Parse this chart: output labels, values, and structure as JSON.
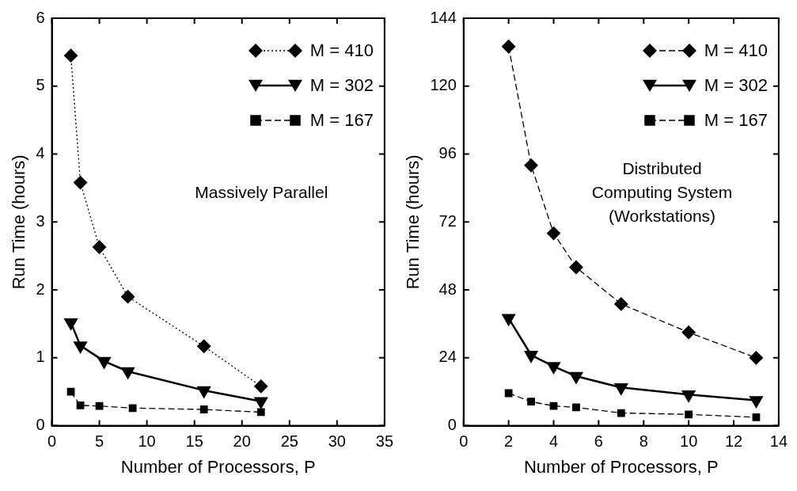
{
  "chart_data": [
    {
      "type": "line",
      "xlabel": "Number of Processors, P",
      "ylabel": "Run Time (hours)",
      "xlim": [
        0,
        35
      ],
      "xticks": [
        0,
        5,
        10,
        15,
        20,
        25,
        30,
        35
      ],
      "ylim": [
        0,
        6
      ],
      "yticks": [
        0,
        1,
        2,
        3,
        4,
        5,
        6
      ],
      "legend": "top right",
      "grid": false,
      "annotations": [
        "Massively Parallel"
      ],
      "series": [
        {
          "name": "M = 410",
          "color": "#000000",
          "marker": "diamond",
          "line_style": "dotted",
          "x": [
            2,
            3,
            5,
            8,
            16,
            22
          ],
          "values": [
            5.45,
            3.58,
            2.63,
            1.9,
            1.17,
            0.58
          ]
        },
        {
          "name": "M = 302",
          "color": "#000000",
          "marker": "triangle",
          "line_style": "solid",
          "x": [
            2,
            3,
            5.5,
            8,
            16,
            22
          ],
          "values": [
            1.52,
            1.18,
            0.95,
            0.8,
            0.52,
            0.36
          ]
        },
        {
          "name": "M = 167",
          "color": "#000000",
          "marker": "square",
          "line_style": "dashed",
          "x": [
            2,
            3,
            5,
            8.5,
            16,
            22
          ],
          "values": [
            0.5,
            0.3,
            0.29,
            0.26,
            0.24,
            0.2
          ]
        }
      ]
    },
    {
      "type": "line",
      "xlabel": "Number of Processors, P",
      "ylabel": "Run Time (hours)",
      "xlim": [
        0,
        14
      ],
      "xticks": [
        0,
        2,
        4,
        6,
        8,
        10,
        12,
        14
      ],
      "ylim": [
        0,
        144
      ],
      "yticks": [
        0,
        24,
        48,
        72,
        96,
        120,
        144
      ],
      "legend": "top right",
      "grid": false,
      "annotations": [
        "Distributed",
        "Computing System",
        "(Workstations)"
      ],
      "series": [
        {
          "name": "M = 410",
          "color": "#000000",
          "marker": "diamond",
          "line_style": "dashed",
          "x": [
            2,
            3,
            4,
            5,
            7,
            10,
            13
          ],
          "values": [
            134,
            92,
            68,
            56,
            43,
            33,
            24
          ]
        },
        {
          "name": "M = 302",
          "color": "#000000",
          "marker": "triangle",
          "line_style": "solid",
          "x": [
            2,
            3,
            4,
            5,
            7,
            10,
            13
          ],
          "values": [
            38,
            25,
            21,
            17.5,
            13.5,
            11,
            9
          ]
        },
        {
          "name": "M = 167",
          "color": "#000000",
          "marker": "square",
          "line_style": "dashed",
          "x": [
            2,
            3,
            4,
            5,
            7,
            10,
            13
          ],
          "values": [
            11.5,
            8.5,
            7,
            6.5,
            4.5,
            4,
            3
          ]
        }
      ]
    }
  ]
}
